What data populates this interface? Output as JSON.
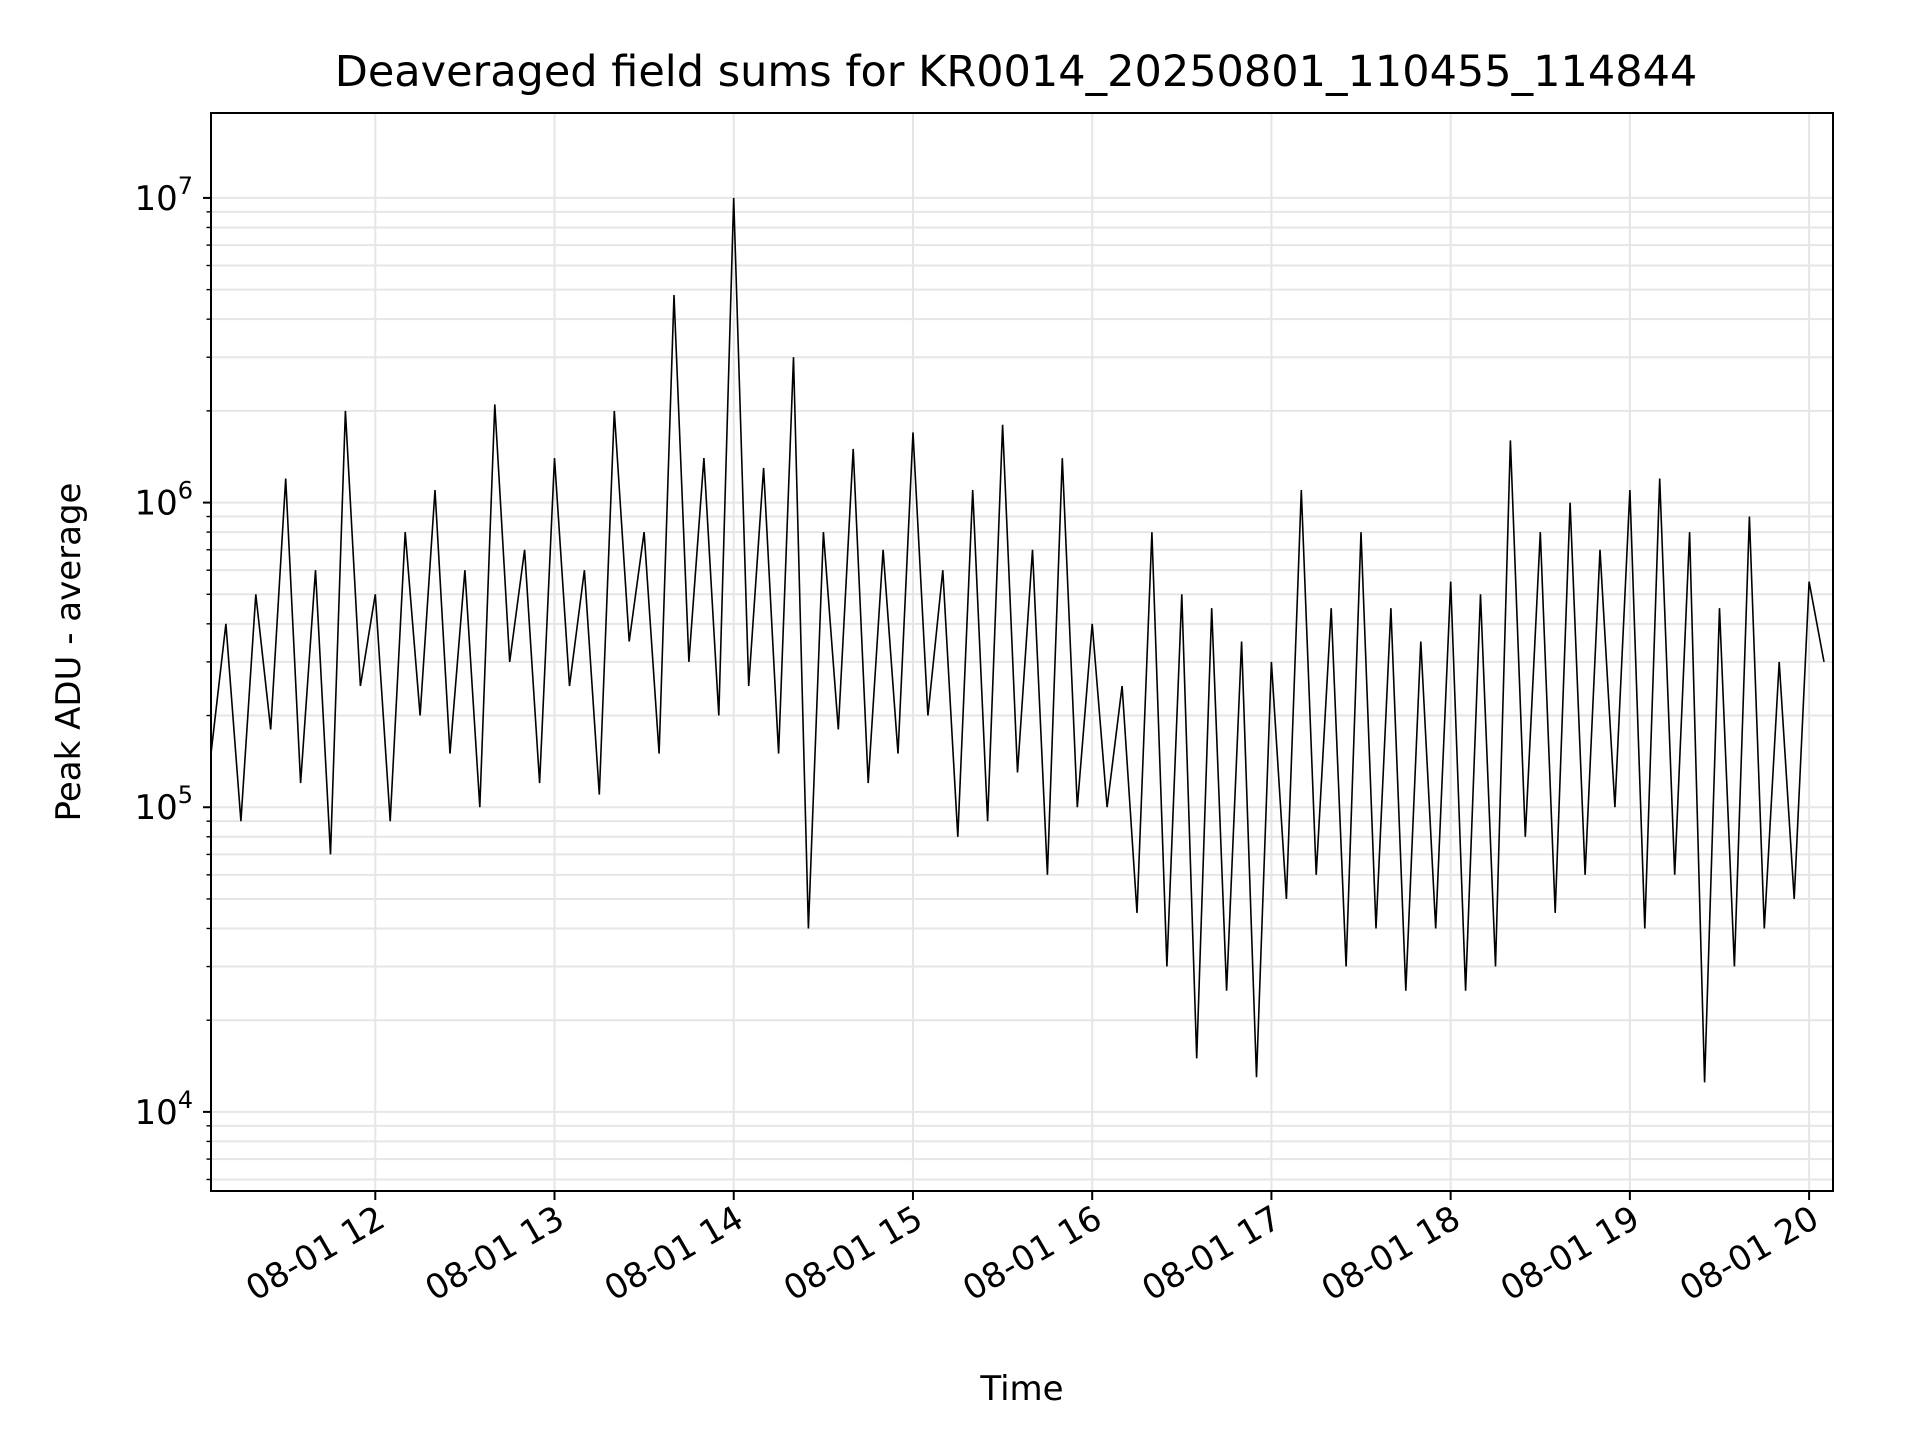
{
  "chart_data": {
    "type": "line",
    "title": "Deaveraged field sums for KR0014_20250801_110455_114844",
    "xlabel": "Time",
    "ylabel": "Peak ADU - average",
    "yscale": "log",
    "x_range": [
      "2025-08-01 11:05",
      "2025-08-01 20:08"
    ],
    "ylim": [
      5500,
      19000000
    ],
    "grid": true,
    "line_color": "#000000",
    "x_ticks": [
      {
        "time": "2025-08-01 12:00",
        "label": "08-01 12"
      },
      {
        "time": "2025-08-01 13:00",
        "label": "08-01 13"
      },
      {
        "time": "2025-08-01 14:00",
        "label": "08-01 14"
      },
      {
        "time": "2025-08-01 15:00",
        "label": "08-01 15"
      },
      {
        "time": "2025-08-01 16:00",
        "label": "08-01 16"
      },
      {
        "time": "2025-08-01 17:00",
        "label": "08-01 17"
      },
      {
        "time": "2025-08-01 18:00",
        "label": "08-01 18"
      },
      {
        "time": "2025-08-01 19:00",
        "label": "08-01 19"
      },
      {
        "time": "2025-08-01 20:00",
        "label": "08-01 20"
      }
    ],
    "y_ticks": [
      {
        "value": 10000,
        "base": "10",
        "exp": "4"
      },
      {
        "value": 100000,
        "base": "10",
        "exp": "5"
      },
      {
        "value": 1000000,
        "base": "10",
        "exp": "6"
      },
      {
        "value": 10000000,
        "base": "10",
        "exp": "7"
      }
    ],
    "series": [
      {
        "x": [
          "2025-08-01 11:05",
          "2025-08-01 11:10",
          "2025-08-01 11:15",
          "2025-08-01 11:20",
          "2025-08-01 11:25",
          "2025-08-01 11:30",
          "2025-08-01 11:35",
          "2025-08-01 11:40",
          "2025-08-01 11:45",
          "2025-08-01 11:50",
          "2025-08-01 11:55",
          "2025-08-01 12:00",
          "2025-08-01 12:05",
          "2025-08-01 12:10",
          "2025-08-01 12:15",
          "2025-08-01 12:20",
          "2025-08-01 12:25",
          "2025-08-01 12:30",
          "2025-08-01 12:35",
          "2025-08-01 12:40",
          "2025-08-01 12:45",
          "2025-08-01 12:50",
          "2025-08-01 12:55",
          "2025-08-01 13:00",
          "2025-08-01 13:05",
          "2025-08-01 13:10",
          "2025-08-01 13:15",
          "2025-08-01 13:20",
          "2025-08-01 13:25",
          "2025-08-01 13:30",
          "2025-08-01 13:35",
          "2025-08-01 13:40",
          "2025-08-01 13:45",
          "2025-08-01 13:50",
          "2025-08-01 13:55",
          "2025-08-01 14:00",
          "2025-08-01 14:05",
          "2025-08-01 14:10",
          "2025-08-01 14:15",
          "2025-08-01 14:20",
          "2025-08-01 14:25",
          "2025-08-01 14:30",
          "2025-08-01 14:35",
          "2025-08-01 14:40",
          "2025-08-01 14:45",
          "2025-08-01 14:50",
          "2025-08-01 14:55",
          "2025-08-01 15:00",
          "2025-08-01 15:05",
          "2025-08-01 15:10",
          "2025-08-01 15:15",
          "2025-08-01 15:20",
          "2025-08-01 15:25",
          "2025-08-01 15:30",
          "2025-08-01 15:35",
          "2025-08-01 15:40",
          "2025-08-01 15:45",
          "2025-08-01 15:50",
          "2025-08-01 15:55",
          "2025-08-01 16:00",
          "2025-08-01 16:05",
          "2025-08-01 16:10",
          "2025-08-01 16:15",
          "2025-08-01 16:20",
          "2025-08-01 16:25",
          "2025-08-01 16:30",
          "2025-08-01 16:35",
          "2025-08-01 16:40",
          "2025-08-01 16:45",
          "2025-08-01 16:50",
          "2025-08-01 16:55",
          "2025-08-01 17:00",
          "2025-08-01 17:05",
          "2025-08-01 17:10",
          "2025-08-01 17:15",
          "2025-08-01 17:20",
          "2025-08-01 17:25",
          "2025-08-01 17:30",
          "2025-08-01 17:35",
          "2025-08-01 17:40",
          "2025-08-01 17:45",
          "2025-08-01 17:50",
          "2025-08-01 17:55",
          "2025-08-01 18:00",
          "2025-08-01 18:05",
          "2025-08-01 18:10",
          "2025-08-01 18:15",
          "2025-08-01 18:20",
          "2025-08-01 18:25",
          "2025-08-01 18:30",
          "2025-08-01 18:35",
          "2025-08-01 18:40",
          "2025-08-01 18:45",
          "2025-08-01 18:50",
          "2025-08-01 18:55",
          "2025-08-01 19:00",
          "2025-08-01 19:05",
          "2025-08-01 19:10",
          "2025-08-01 19:15",
          "2025-08-01 19:20",
          "2025-08-01 19:25",
          "2025-08-01 19:30",
          "2025-08-01 19:35",
          "2025-08-01 19:40",
          "2025-08-01 19:45",
          "2025-08-01 19:50",
          "2025-08-01 19:55",
          "2025-08-01 20:00",
          "2025-08-01 20:05"
        ],
        "y": [
          150000,
          400000,
          90000,
          500000,
          180000,
          1200000,
          120000,
          600000,
          70000,
          2000000,
          250000,
          500000,
          90000,
          800000,
          200000,
          1100000,
          150000,
          600000,
          100000,
          2100000,
          300000,
          700000,
          120000,
          1400000,
          250000,
          600000,
          110000,
          2000000,
          350000,
          800000,
          150000,
          4800000,
          300000,
          1400000,
          200000,
          10000000,
          250000,
          1300000,
          150000,
          3000000,
          40000,
          800000,
          180000,
          1500000,
          120000,
          700000,
          150000,
          1700000,
          200000,
          600000,
          80000,
          1100000,
          90000,
          1800000,
          130000,
          700000,
          60000,
          1400000,
          100000,
          400000,
          100000,
          250000,
          45000,
          800000,
          30000,
          500000,
          15000,
          450000,
          25000,
          350000,
          13000,
          300000,
          50000,
          1100000,
          60000,
          450000,
          30000,
          800000,
          40000,
          450000,
          25000,
          350000,
          40000,
          550000,
          25000,
          500000,
          30000,
          1600000,
          80000,
          800000,
          45000,
          1000000,
          60000,
          700000,
          100000,
          1100000,
          40000,
          1200000,
          60000,
          800000,
          12500,
          450000,
          30000,
          900000,
          40000,
          300000,
          50000,
          550000,
          300000
        ]
      }
    ]
  }
}
